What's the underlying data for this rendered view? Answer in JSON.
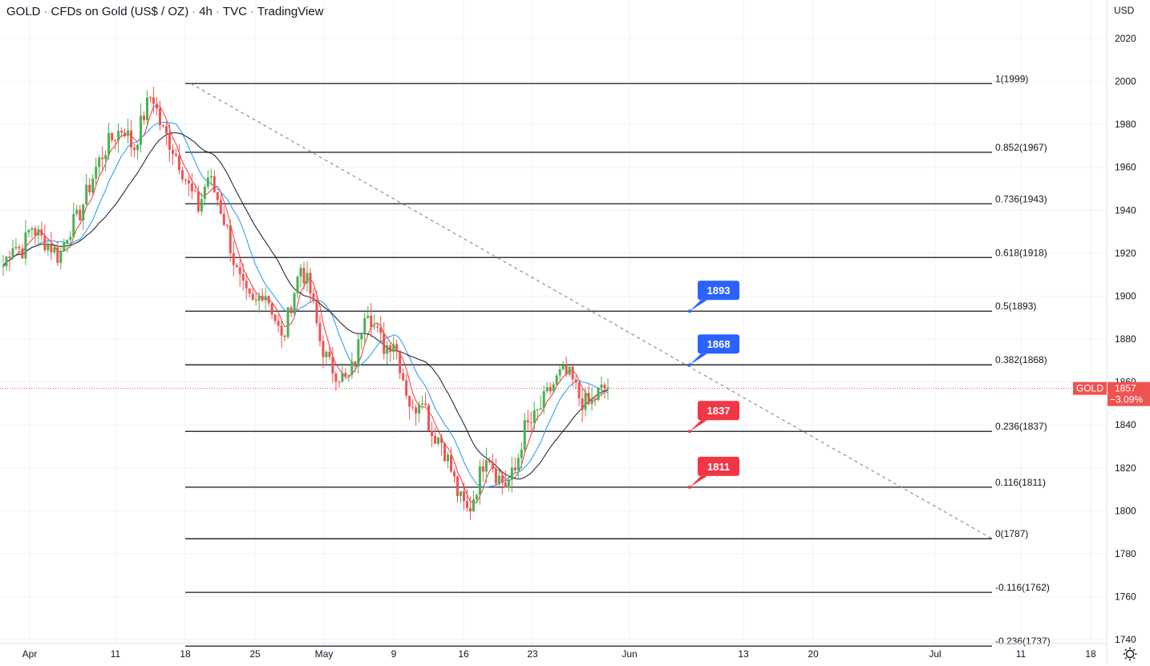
{
  "header": {
    "symbol": "GOLD",
    "description": "CFDs on Gold (US$ / OZ)",
    "interval": "4h",
    "exchange": "TVC",
    "source": "TradingView",
    "currency": "USD"
  },
  "colors": {
    "up": "#26a69a",
    "upBody": "#4caf50",
    "down": "#ef5350",
    "ma_fast": "#f23645",
    "ma_mid": "#2196f3",
    "ma_slow": "#131722",
    "label_blue": "#2962ff",
    "label_red": "#f23645",
    "grid": "#f0f3fa"
  },
  "chart_data": {
    "type": "candlestick",
    "price_axis": {
      "ticks": [
        "2020",
        "2000",
        "1980",
        "1960",
        "1940",
        "1920",
        "1900",
        "1880",
        "1860",
        "1840",
        "1820",
        "1800",
        "1780",
        "1760",
        "1740"
      ],
      "ylim": [
        1738,
        2027
      ]
    },
    "time_axis": {
      "labels": [
        "Apr",
        "11",
        "18",
        "25",
        "May",
        "9",
        "16",
        "23",
        "Jun",
        "13",
        "20",
        "Jul",
        "11",
        "18"
      ]
    },
    "last_price": {
      "symbol": "GOLD",
      "value": "1857",
      "change": "−3.09%"
    },
    "fibonacci": [
      {
        "label": "1(1999)",
        "price": 1999
      },
      {
        "label": "0.852(1967)",
        "price": 1967
      },
      {
        "label": "0.736(1943)",
        "price": 1943
      },
      {
        "label": "0.618(1918)",
        "price": 1918
      },
      {
        "label": "0.5(1893)",
        "price": 1893
      },
      {
        "label": "0.382(1868)",
        "price": 1868
      },
      {
        "label": "0.236(1837)",
        "price": 1837
      },
      {
        "label": "0.116(1811)",
        "price": 1811
      },
      {
        "label": "0(1787)",
        "price": 1787
      },
      {
        "label": "-0.116(1762)",
        "price": 1762
      },
      {
        "label": "-0.236(1737)",
        "price": 1737
      }
    ],
    "callouts": [
      {
        "text": "1893",
        "price": 1893,
        "color": "blue"
      },
      {
        "text": "1868",
        "price": 1868,
        "color": "blue"
      },
      {
        "text": "1837",
        "price": 1837,
        "color": "red"
      },
      {
        "text": "1811",
        "price": 1811,
        "color": "red"
      }
    ],
    "trendline": {
      "from_price": 1999,
      "to_price": 1787,
      "style": "dashed"
    },
    "price_path": [
      1914,
      1925,
      1921,
      1933,
      1927,
      1924,
      1918,
      1931,
      1936,
      1948,
      1960,
      1969,
      1975,
      1979,
      1968,
      1983,
      1995,
      1978,
      1971,
      1962,
      1950,
      1941,
      1956,
      1946,
      1932,
      1912,
      1900,
      1895,
      1904,
      1893,
      1878,
      1898,
      1914,
      1902,
      1880,
      1868,
      1864,
      1860,
      1872,
      1898,
      1884,
      1876,
      1880,
      1862,
      1845,
      1856,
      1836,
      1834,
      1821,
      1806,
      1799,
      1813,
      1829,
      1817,
      1812,
      1818,
      1838,
      1842,
      1850,
      1858,
      1864,
      1862,
      1852,
      1849,
      1855,
      1858
    ]
  }
}
